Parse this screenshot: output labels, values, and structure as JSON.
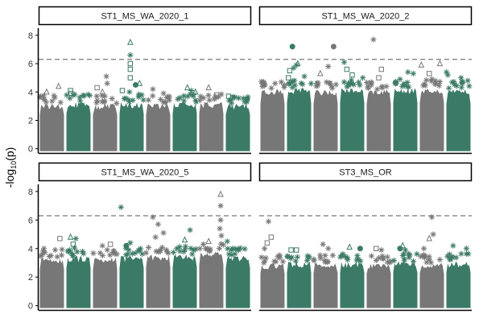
{
  "chart_data": {
    "type": "scatter",
    "subtype": "manhattan",
    "title": "",
    "xlabel": "",
    "ylabel": {
      "base": "-log",
      "subscript": "10",
      "suffix": "(p)"
    },
    "ylim": [
      -0.3,
      8.5
    ],
    "yticks": [
      0,
      2,
      4,
      6,
      8
    ],
    "ytick_labels": [
      "0",
      "2",
      "4",
      "6",
      "8"
    ],
    "threshold": 6.3,
    "threshold_style": "dashed",
    "grid": false,
    "legend": "none",
    "x_tick_labels_shown": false,
    "colors": {
      "grey": "#777777",
      "green": "#3b7a66",
      "threshold": "#777777",
      "axis": "#000000",
      "strip_border": "#000000",
      "strip_fill": "#ffffff"
    },
    "chromosomes": 8,
    "chromosome_color_order": [
      "grey",
      "green",
      "grey",
      "green",
      "grey",
      "green",
      "grey",
      "green"
    ],
    "panels": [
      {
        "name": "ST1_MS_WA_2020_1",
        "bulk_top": [
          3.2,
          3.3,
          3.2,
          3.3,
          3.2,
          3.3,
          3.3,
          3.2
        ],
        "points": [
          {
            "chrom": 1,
            "pos": 0.3,
            "y": 4.0,
            "shape": "triangle"
          },
          {
            "chrom": 1,
            "pos": 0.75,
            "y": 4.4,
            "shape": "triangle"
          },
          {
            "chrom": 2,
            "pos": 0.2,
            "y": 4.1,
            "shape": "square"
          },
          {
            "chrom": 2,
            "pos": 0.22,
            "y": 3.9,
            "shape": "square"
          },
          {
            "chrom": 3,
            "pos": 0.2,
            "y": 4.3,
            "shape": "square"
          },
          {
            "chrom": 3,
            "pos": 0.4,
            "y": 4.0,
            "shape": "triangle"
          },
          {
            "chrom": 3,
            "pos": 0.55,
            "y": 5.1,
            "shape": "asterisk"
          },
          {
            "chrom": 3,
            "pos": 0.58,
            "y": 4.6,
            "shape": "asterisk"
          },
          {
            "chrom": 4,
            "pos": 0.15,
            "y": 4.1,
            "shape": "square"
          },
          {
            "chrom": 4,
            "pos": 0.45,
            "y": 7.5,
            "shape": "triangle"
          },
          {
            "chrom": 4,
            "pos": 0.45,
            "y": 6.6,
            "shape": "asterisk"
          },
          {
            "chrom": 4,
            "pos": 0.45,
            "y": 6.0,
            "shape": "square"
          },
          {
            "chrom": 4,
            "pos": 0.45,
            "y": 5.6,
            "shape": "square"
          },
          {
            "chrom": 4,
            "pos": 0.45,
            "y": 5.0,
            "shape": "square"
          },
          {
            "chrom": 4,
            "pos": 0.42,
            "y": 4.0,
            "shape": "asterisk"
          },
          {
            "chrom": 4,
            "pos": 0.65,
            "y": 4.5,
            "shape": "circle"
          },
          {
            "chrom": 4,
            "pos": 0.8,
            "y": 4.6,
            "shape": "triangle"
          },
          {
            "chrom": 5,
            "pos": 0.3,
            "y": 4.2,
            "shape": "asterisk"
          },
          {
            "chrom": 5,
            "pos": 0.7,
            "y": 3.9,
            "shape": "asterisk"
          },
          {
            "chrom": 6,
            "pos": 0.6,
            "y": 4.3,
            "shape": "triangle"
          },
          {
            "chrom": 6,
            "pos": 0.75,
            "y": 4.1,
            "shape": "asterisk"
          },
          {
            "chrom": 6,
            "pos": 0.9,
            "y": 4.0,
            "shape": "triangle"
          },
          {
            "chrom": 7,
            "pos": 0.4,
            "y": 4.3,
            "shape": "triangle"
          },
          {
            "chrom": 7,
            "pos": 0.7,
            "y": 3.8,
            "shape": "square"
          },
          {
            "chrom": 8,
            "pos": 0.15,
            "y": 3.7,
            "shape": "square"
          },
          {
            "chrom": 8,
            "pos": 0.3,
            "y": 3.6,
            "shape": "square"
          },
          {
            "chrom": 8,
            "pos": 0.85,
            "y": 3.5,
            "shape": "circle"
          }
        ]
      },
      {
        "name": "ST1_MS_WA_2020_2",
        "bulk_top": [
          4.2,
          4.3,
          4.2,
          4.3,
          4.2,
          4.3,
          4.3,
          4.2
        ],
        "points": [
          {
            "chrom": 1,
            "pos": 0.2,
            "y": 4.5,
            "shape": "asterisk"
          },
          {
            "chrom": 1,
            "pos": 0.6,
            "y": 4.6,
            "shape": "asterisk"
          },
          {
            "chrom": 2,
            "pos": 0.25,
            "y": 7.2,
            "shape": "circle"
          },
          {
            "chrom": 2,
            "pos": 0.15,
            "y": 5.5,
            "shape": "square"
          },
          {
            "chrom": 2,
            "pos": 0.3,
            "y": 5.7,
            "shape": "asterisk"
          },
          {
            "chrom": 2,
            "pos": 0.45,
            "y": 6.0,
            "shape": "triangle"
          },
          {
            "chrom": 2,
            "pos": 0.4,
            "y": 5.9,
            "shape": "asterisk"
          },
          {
            "chrom": 2,
            "pos": 0.1,
            "y": 5.0,
            "shape": "square"
          },
          {
            "chrom": 2,
            "pos": 0.7,
            "y": 5.1,
            "shape": "asterisk"
          },
          {
            "chrom": 3,
            "pos": 0.3,
            "y": 5.3,
            "shape": "triangle"
          },
          {
            "chrom": 3,
            "pos": 0.6,
            "y": 5.8,
            "shape": "asterisk"
          },
          {
            "chrom": 3,
            "pos": 0.8,
            "y": 7.2,
            "shape": "circle"
          },
          {
            "chrom": 4,
            "pos": 0.2,
            "y": 6.1,
            "shape": "asterisk"
          },
          {
            "chrom": 4,
            "pos": 0.3,
            "y": 5.6,
            "shape": "square"
          },
          {
            "chrom": 4,
            "pos": 0.5,
            "y": 5.2,
            "shape": "square"
          },
          {
            "chrom": 4,
            "pos": 0.9,
            "y": 5.0,
            "shape": "asterisk"
          },
          {
            "chrom": 5,
            "pos": 0.3,
            "y": 7.7,
            "shape": "asterisk"
          },
          {
            "chrom": 5,
            "pos": 0.5,
            "y": 5.0,
            "shape": "square"
          },
          {
            "chrom": 5,
            "pos": 0.6,
            "y": 5.6,
            "shape": "square"
          },
          {
            "chrom": 6,
            "pos": 0.3,
            "y": 4.9,
            "shape": "asterisk"
          },
          {
            "chrom": 6,
            "pos": 0.6,
            "y": 5.4,
            "shape": "asterisk"
          },
          {
            "chrom": 6,
            "pos": 0.8,
            "y": 5.3,
            "shape": "asterisk"
          },
          {
            "chrom": 7,
            "pos": 0.1,
            "y": 5.9,
            "shape": "triangle"
          },
          {
            "chrom": 7,
            "pos": 0.5,
            "y": 4.9,
            "shape": "asterisk"
          },
          {
            "chrom": 7,
            "pos": 0.8,
            "y": 6.0,
            "shape": "triangle"
          },
          {
            "chrom": 7,
            "pos": 0.4,
            "y": 5.3,
            "shape": "square"
          },
          {
            "chrom": 8,
            "pos": 0.05,
            "y": 5.4,
            "shape": "asterisk"
          },
          {
            "chrom": 8,
            "pos": 0.1,
            "y": 5.2,
            "shape": "asterisk"
          },
          {
            "chrom": 8,
            "pos": 0.6,
            "y": 5.0,
            "shape": "asterisk"
          },
          {
            "chrom": 8,
            "pos": 0.85,
            "y": 4.8,
            "shape": "asterisk"
          }
        ]
      },
      {
        "name": "ST1_MS_WA_2020_5",
        "bulk_top": [
          3.4,
          3.5,
          3.4,
          3.5,
          3.6,
          3.6,
          3.8,
          3.5
        ],
        "points": [
          {
            "chrom": 1,
            "pos": 0.2,
            "y": 4.0,
            "shape": "asterisk"
          },
          {
            "chrom": 1,
            "pos": 0.8,
            "y": 4.7,
            "shape": "square"
          },
          {
            "chrom": 2,
            "pos": 0.2,
            "y": 4.8,
            "shape": "triangle"
          },
          {
            "chrom": 2,
            "pos": 0.4,
            "y": 4.7,
            "shape": "asterisk"
          },
          {
            "chrom": 2,
            "pos": 0.3,
            "y": 4.3,
            "shape": "square"
          },
          {
            "chrom": 3,
            "pos": 0.4,
            "y": 4.2,
            "shape": "asterisk"
          },
          {
            "chrom": 3,
            "pos": 0.7,
            "y": 4.3,
            "shape": "square"
          },
          {
            "chrom": 4,
            "pos": 0.1,
            "y": 6.9,
            "shape": "asterisk"
          },
          {
            "chrom": 4,
            "pos": 0.3,
            "y": 4.2,
            "shape": "circle"
          },
          {
            "chrom": 4,
            "pos": 0.45,
            "y": 4.4,
            "shape": "asterisk"
          },
          {
            "chrom": 5,
            "pos": 0.3,
            "y": 6.2,
            "shape": "asterisk"
          },
          {
            "chrom": 5,
            "pos": 0.5,
            "y": 5.7,
            "shape": "asterisk"
          },
          {
            "chrom": 5,
            "pos": 0.4,
            "y": 4.8,
            "shape": "asterisk"
          },
          {
            "chrom": 5,
            "pos": 0.7,
            "y": 5.1,
            "shape": "asterisk"
          },
          {
            "chrom": 6,
            "pos": 0.2,
            "y": 4.0,
            "shape": "asterisk"
          },
          {
            "chrom": 6,
            "pos": 0.7,
            "y": 5.3,
            "shape": "asterisk"
          },
          {
            "chrom": 6,
            "pos": 0.5,
            "y": 4.6,
            "shape": "triangle"
          },
          {
            "chrom": 7,
            "pos": 0.2,
            "y": 4.3,
            "shape": "asterisk"
          },
          {
            "chrom": 7,
            "pos": 0.4,
            "y": 4.5,
            "shape": "triangle"
          },
          {
            "chrom": 7,
            "pos": 0.85,
            "y": 7.8,
            "shape": "triangle"
          },
          {
            "chrom": 7,
            "pos": 0.85,
            "y": 7.0,
            "shape": "asterisk"
          },
          {
            "chrom": 7,
            "pos": 0.85,
            "y": 6.0,
            "shape": "asterisk"
          },
          {
            "chrom": 7,
            "pos": 0.82,
            "y": 5.4,
            "shape": "asterisk"
          },
          {
            "chrom": 7,
            "pos": 0.88,
            "y": 4.9,
            "shape": "asterisk"
          },
          {
            "chrom": 8,
            "pos": 0.1,
            "y": 4.5,
            "shape": "asterisk"
          },
          {
            "chrom": 8,
            "pos": 0.3,
            "y": 4.0,
            "shape": "asterisk"
          }
        ]
      },
      {
        "name": "ST3_MS_OR",
        "bulk_top": [
          3.0,
          3.1,
          3.0,
          3.1,
          3.0,
          3.1,
          3.0,
          3.1
        ],
        "points": [
          {
            "chrom": 1,
            "pos": 0.35,
            "y": 5.9,
            "shape": "asterisk"
          },
          {
            "chrom": 1,
            "pos": 0.3,
            "y": 4.4,
            "shape": "square"
          },
          {
            "chrom": 1,
            "pos": 0.45,
            "y": 4.8,
            "shape": "square"
          },
          {
            "chrom": 1,
            "pos": 0.2,
            "y": 4.0,
            "shape": "asterisk"
          },
          {
            "chrom": 2,
            "pos": 0.2,
            "y": 3.9,
            "shape": "square"
          },
          {
            "chrom": 2,
            "pos": 0.4,
            "y": 3.9,
            "shape": "square"
          },
          {
            "chrom": 3,
            "pos": 0.4,
            "y": 4.3,
            "shape": "asterisk"
          },
          {
            "chrom": 3,
            "pos": 0.6,
            "y": 4.0,
            "shape": "asterisk"
          },
          {
            "chrom": 4,
            "pos": 0.4,
            "y": 4.1,
            "shape": "triangle"
          },
          {
            "chrom": 4,
            "pos": 0.8,
            "y": 4.0,
            "shape": "circle"
          },
          {
            "chrom": 5,
            "pos": 0.4,
            "y": 4.0,
            "shape": "square"
          },
          {
            "chrom": 5,
            "pos": 0.6,
            "y": 3.9,
            "shape": "asterisk"
          },
          {
            "chrom": 6,
            "pos": 0.3,
            "y": 4.0,
            "shape": "circle"
          },
          {
            "chrom": 6,
            "pos": 0.4,
            "y": 4.2,
            "shape": "triangle"
          },
          {
            "chrom": 6,
            "pos": 0.5,
            "y": 3.9,
            "shape": "asterisk"
          },
          {
            "chrom": 7,
            "pos": 0.5,
            "y": 6.2,
            "shape": "asterisk"
          },
          {
            "chrom": 7,
            "pos": 0.4,
            "y": 4.7,
            "shape": "triangle"
          },
          {
            "chrom": 7,
            "pos": 0.55,
            "y": 5.0,
            "shape": "asterisk"
          },
          {
            "chrom": 7,
            "pos": 0.2,
            "y": 4.0,
            "shape": "asterisk"
          },
          {
            "chrom": 8,
            "pos": 0.3,
            "y": 4.2,
            "shape": "asterisk"
          },
          {
            "chrom": 8,
            "pos": 0.8,
            "y": 4.0,
            "shape": "asterisk"
          }
        ]
      }
    ]
  }
}
